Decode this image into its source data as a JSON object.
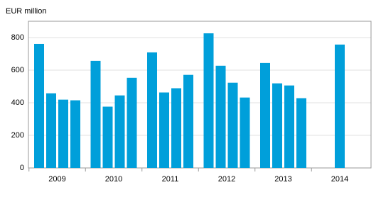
{
  "chart_data": {
    "type": "bar",
    "y_label": "EUR million",
    "color": "#009fda",
    "groups": [
      {
        "label": "2009",
        "values": [
          761,
          458,
          419,
          415
        ]
      },
      {
        "label": "2010",
        "values": [
          657,
          376,
          445,
          553
        ]
      },
      {
        "label": "2011",
        "values": [
          709,
          463,
          489,
          571
        ]
      },
      {
        "label": "2012",
        "values": [
          826,
          627,
          523,
          432
        ]
      },
      {
        "label": "2013",
        "values": [
          644,
          519,
          506,
          428
        ]
      },
      {
        "label": "2014",
        "values": [
          757
        ]
      }
    ],
    "ylim": [
      0,
      900
    ],
    "yticks": [
      0,
      200,
      400,
      600,
      800
    ],
    "grid": true
  }
}
